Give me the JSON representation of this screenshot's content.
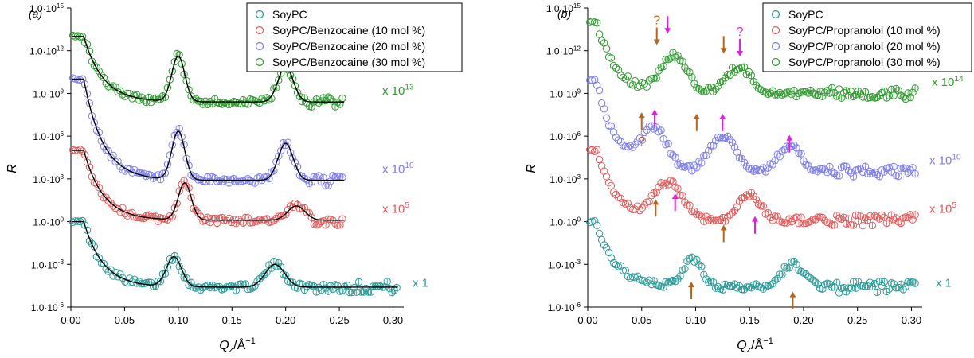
{
  "chart_data": [
    {
      "type": "scatter",
      "panel_label": "(a)",
      "xlabel": "Q",
      "xlabel_sub": "z",
      "xlabel_unit": "/Å",
      "xlabel_exp": "−1",
      "ylabel": "R",
      "xlim": [
        0,
        0.31
      ],
      "ylim_log10": [
        -6,
        15
      ],
      "yscale": "log",
      "x_ticks": [
        "0.00",
        "0.05",
        "0.10",
        "0.15",
        "0.20",
        "0.25",
        "0.30"
      ],
      "y_ticks": [
        {
          "mantissa": "1.0·10",
          "exp": "15"
        },
        {
          "mantissa": "1.0·10",
          "exp": "12"
        },
        {
          "mantissa": "1.0·10",
          "exp": "9"
        },
        {
          "mantissa": "1.0·10",
          "exp": "6"
        },
        {
          "mantissa": "1.0·10",
          "exp": "3"
        },
        {
          "mantissa": "1.0·10",
          "exp": "0"
        },
        {
          "mantissa": "1.0·10",
          "exp": "-3"
        },
        {
          "mantissa": "1.0·10",
          "exp": "-6"
        }
      ],
      "legend_position": "top-right",
      "series": [
        {
          "name": "SoyPC",
          "color": "#2a9a97",
          "offset_log10": 0,
          "scale_base": "x 1",
          "scale_exp": "",
          "xmax": 0.305,
          "baseline": -4.6,
          "plateau_end": 0.012,
          "peaks": [
            [
              0.096,
              2.1,
              0.007
            ],
            [
              0.19,
              1.6,
              0.009
            ]
          ]
        },
        {
          "name": "SoyPC/Benzocaine (10 mol %)",
          "color": "#e05a5a",
          "offset_log10": 5,
          "scale_base": "x 10",
          "scale_exp": "5",
          "xmax": 0.255,
          "baseline": -4.9,
          "plateau_end": 0.012,
          "peaks": [
            [
              0.106,
              2.6,
              0.006
            ],
            [
              0.21,
              1.0,
              0.008
            ]
          ]
        },
        {
          "name": "SoyPC/Benzocaine (20 mol %)",
          "color": "#7d7de8",
          "offset_log10": 10,
          "scale_base": "x 10",
          "scale_exp": "10",
          "xmax": 0.255,
          "baseline": -7.1,
          "plateau_end": 0.012,
          "peaks": [
            [
              0.1,
              3.4,
              0.006
            ],
            [
              0.2,
              2.6,
              0.007
            ]
          ]
        },
        {
          "name": "SoyPC/Benzocaine (30 mol %)",
          "color": "#2f9a2f",
          "offset_log10": 13,
          "scale_base": "x 10",
          "scale_exp": "13",
          "xmax": 0.255,
          "baseline": -4.6,
          "plateau_end": 0.012,
          "peaks": [
            [
              0.1,
              3.2,
              0.006
            ],
            [
              0.2,
              2.5,
              0.007
            ]
          ]
        }
      ]
    },
    {
      "type": "scatter",
      "panel_label": "(b)",
      "xlabel": "Q",
      "xlabel_sub": "z",
      "xlabel_unit": "/Å",
      "xlabel_exp": "−1",
      "ylabel": "R",
      "xlim": [
        0,
        0.31
      ],
      "ylim_log10": [
        -6,
        15
      ],
      "yscale": "log",
      "x_ticks": [
        "0.00",
        "0.05",
        "0.10",
        "0.15",
        "0.20",
        "0.25",
        "0.30"
      ],
      "y_ticks": [
        {
          "mantissa": "1.0·10",
          "exp": "15"
        },
        {
          "mantissa": "1.0·10",
          "exp": "12"
        },
        {
          "mantissa": "1.0·10",
          "exp": "9"
        },
        {
          "mantissa": "1.0·10",
          "exp": "6"
        },
        {
          "mantissa": "1.0·10",
          "exp": "3"
        },
        {
          "mantissa": "1.0·10",
          "exp": "0"
        },
        {
          "mantissa": "1.0·10",
          "exp": "-3"
        },
        {
          "mantissa": "1.0·10",
          "exp": "-6"
        }
      ],
      "legend_position": "top-right",
      "series": [
        {
          "name": "SoyPC",
          "color": "#2a9a97",
          "offset_log10": 0,
          "scale_base": "x 1",
          "scale_exp": "",
          "xmax": 0.305,
          "baseline": -4.6,
          "plateau_end": 0.008,
          "peaks": [
            [
              0.097,
              1.9,
              0.009
            ],
            [
              0.19,
              1.6,
              0.011
            ]
          ]
        },
        {
          "name": "SoyPC/Propranolol (10 mol %)",
          "color": "#e05a5a",
          "offset_log10": 5,
          "scale_base": "x 10",
          "scale_exp": "5",
          "xmax": 0.305,
          "baseline": -4.9,
          "plateau_end": 0.008,
          "peaks": [
            [
              0.075,
              2.6,
              0.013
            ],
            [
              0.15,
              1.8,
              0.01
            ]
          ]
        },
        {
          "name": "SoyPC/Propranolol (20 mol %)",
          "color": "#7d7de8",
          "offset_log10": 10,
          "scale_base": "x 10",
          "scale_exp": "10",
          "xmax": 0.305,
          "baseline": -6.5,
          "plateau_end": 0.008,
          "peaks": [
            [
              0.062,
              2.8,
              0.012
            ],
            [
              0.125,
              2.6,
              0.012
            ],
            [
              0.187,
              1.9,
              0.01
            ]
          ]
        },
        {
          "name": "SoyPC/Propranolol (30 mol %)",
          "color": "#2f9a2f",
          "offset_log10": 14,
          "scale_base": "x 10",
          "scale_exp": "14",
          "xmax": 0.305,
          "baseline": -5.0,
          "plateau_end": 0.008,
          "peaks": [
            [
              0.08,
              2.6,
              0.012
            ],
            [
              0.14,
              1.8,
              0.012
            ]
          ]
        }
      ],
      "annotations": [
        {
          "label": "?",
          "color": "#b5651d",
          "x": 0.064,
          "y_log10": 12.4,
          "dir": "down"
        },
        {
          "label": "",
          "color": "#e020e0",
          "x": 0.074,
          "y_log10": 13.2,
          "dir": "down"
        },
        {
          "label": "",
          "color": "#b5651d",
          "x": 0.126,
          "y_log10": 11.8,
          "dir": "down"
        },
        {
          "label": "?",
          "color": "#e020e0",
          "x": 0.141,
          "y_log10": 11.6,
          "dir": "down"
        },
        {
          "label": "?",
          "color": "#b5651d",
          "x": 0.05,
          "y_log10": 7.4,
          "dir": "up"
        },
        {
          "label": "",
          "color": "#e020e0",
          "x": 0.062,
          "y_log10": 7.6,
          "dir": "up"
        },
        {
          "label": "",
          "color": "#b5651d",
          "x": 0.101,
          "y_log10": 7.3,
          "dir": "up"
        },
        {
          "label": "",
          "color": "#e020e0",
          "x": 0.125,
          "y_log10": 7.3,
          "dir": "up"
        },
        {
          "label": "",
          "color": "#e020e0",
          "x": 0.187,
          "y_log10": 5.8,
          "dir": "up"
        },
        {
          "label": "",
          "color": "#b5651d",
          "x": 0.063,
          "y_log10": 1.3,
          "dir": "up"
        },
        {
          "label": "",
          "color": "#e020e0",
          "x": 0.081,
          "y_log10": 1.7,
          "dir": "up"
        },
        {
          "label": "",
          "color": "#b5651d",
          "x": 0.126,
          "y_log10": -0.5,
          "dir": "up"
        },
        {
          "label": "",
          "color": "#e020e0",
          "x": 0.155,
          "y_log10": 0.1,
          "dir": "up"
        },
        {
          "label": "",
          "color": "#b5651d",
          "x": 0.096,
          "y_log10": -4.5,
          "dir": "up"
        },
        {
          "label": "",
          "color": "#b5651d",
          "x": 0.19,
          "y_log10": -5.2,
          "dir": "up"
        }
      ]
    }
  ]
}
